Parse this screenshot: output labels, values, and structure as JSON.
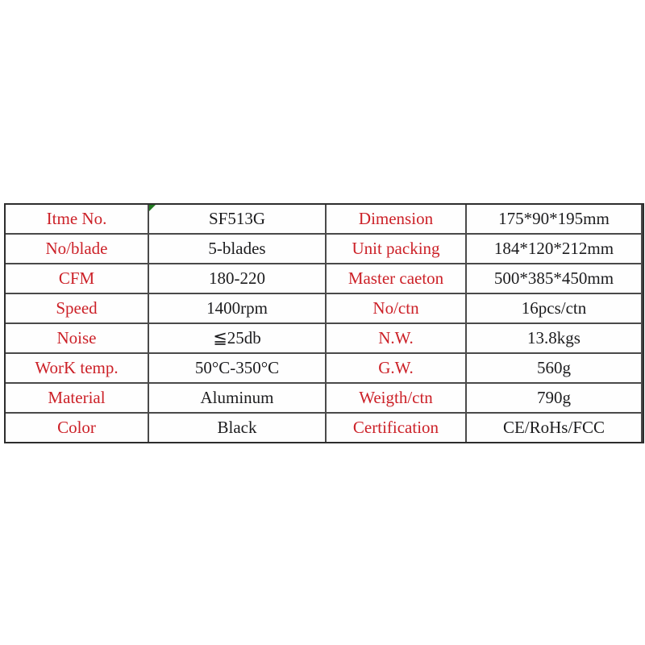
{
  "page": {
    "background": "#ffffff"
  },
  "table": {
    "label_color": "#cc2128",
    "value_color": "#1c1c1e",
    "grid_line_color": "#4a4a4a",
    "outer_border_color": "#2d2d2d",
    "marker_color": "#217a21",
    "marker_icon": "green-corner-triangle",
    "rows": [
      {
        "left_label": "Itme No.",
        "left_value": "SF513G",
        "right_label": "Dimension",
        "right_value": "175*90*195mm"
      },
      {
        "left_label": "No/blade",
        "left_value": "5-blades",
        "right_label": "Unit packing",
        "right_value": "184*120*212mm"
      },
      {
        "left_label": "CFM",
        "left_value": "180-220",
        "right_label": "Master caeton",
        "right_value": "500*385*450mm"
      },
      {
        "left_label": "Speed",
        "left_value": "1400rpm",
        "right_label": "No/ctn",
        "right_value": "16pcs/ctn"
      },
      {
        "left_label": "Noise",
        "left_value": "≦25db",
        "right_label": "N.W.",
        "right_value": "13.8kgs"
      },
      {
        "left_label": "WorK temp.",
        "left_value": "50°C-350°C",
        "right_label": "G.W.",
        "right_value": "560g"
      },
      {
        "left_label": "Material",
        "left_value": "Aluminum",
        "right_label": "Weigth/ctn",
        "right_value": "790g"
      },
      {
        "left_label": "Color",
        "left_value": "Black",
        "right_label": "Certification",
        "right_value": "CE/RoHs/FCC"
      }
    ]
  }
}
